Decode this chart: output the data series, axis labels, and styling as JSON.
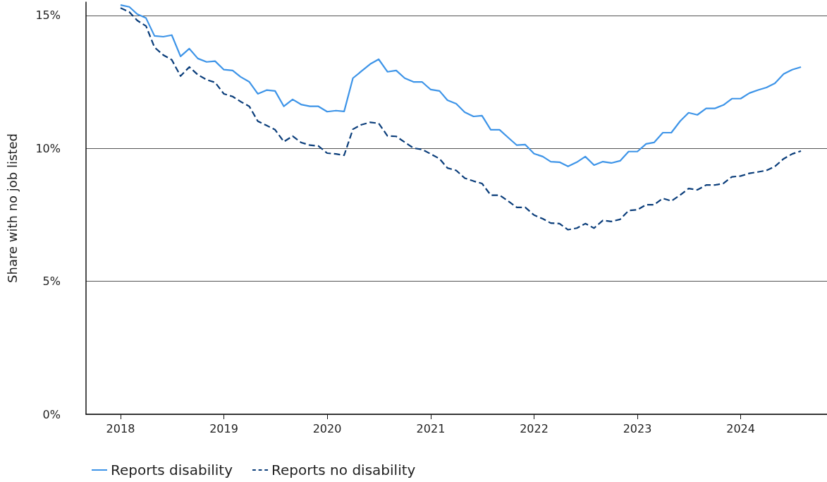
{
  "chart_data": {
    "type": "line",
    "ylabel": "Share with no job listed",
    "x": [
      "2018-01",
      "2018-02",
      "2018-03",
      "2018-04",
      "2018-05",
      "2018-06",
      "2018-07",
      "2018-08",
      "2018-09",
      "2018-10",
      "2018-11",
      "2018-12",
      "2019-01",
      "2019-02",
      "2019-03",
      "2019-04",
      "2019-05",
      "2019-06",
      "2019-07",
      "2019-08",
      "2019-09",
      "2019-10",
      "2019-11",
      "2019-12",
      "2020-01",
      "2020-02",
      "2020-03",
      "2020-04",
      "2020-05",
      "2020-06",
      "2020-07",
      "2020-08",
      "2020-09",
      "2020-10",
      "2020-11",
      "2020-12",
      "2021-01",
      "2021-02",
      "2021-03",
      "2021-04",
      "2021-05",
      "2021-06",
      "2021-07",
      "2021-08",
      "2021-09",
      "2021-10",
      "2021-11",
      "2021-12",
      "2022-01",
      "2022-02",
      "2022-03",
      "2022-04",
      "2022-05",
      "2022-06",
      "2022-07",
      "2022-08",
      "2022-09",
      "2022-10",
      "2022-11",
      "2022-12",
      "2023-01",
      "2023-02",
      "2023-03",
      "2023-04",
      "2023-05",
      "2023-06",
      "2023-07",
      "2023-08",
      "2023-09",
      "2023-10",
      "2023-11",
      "2023-12",
      "2024-01",
      "2024-02",
      "2024-03",
      "2024-04",
      "2024-05",
      "2024-06",
      "2024-07",
      "2024-08"
    ],
    "series": [
      {
        "name": "Reports disability",
        "color": "#3d94e8",
        "line_style": "solid",
        "values": [
          15.39,
          15.32,
          15.05,
          14.9,
          14.23,
          14.2,
          14.26,
          13.46,
          13.75,
          13.38,
          13.25,
          13.28,
          12.96,
          12.93,
          12.69,
          12.5,
          12.05,
          12.19,
          12.16,
          11.58,
          11.84,
          11.65,
          11.58,
          11.58,
          11.38,
          11.42,
          11.39,
          12.64,
          12.9,
          13.17,
          13.35,
          12.88,
          12.93,
          12.64,
          12.5,
          12.5,
          12.21,
          12.16,
          11.81,
          11.68,
          11.36,
          11.2,
          11.23,
          10.7,
          10.7,
          10.41,
          10.12,
          10.14,
          9.8,
          9.69,
          9.5,
          9.48,
          9.32,
          9.48,
          9.69,
          9.37,
          9.5,
          9.45,
          9.53,
          9.88,
          9.88,
          10.17,
          10.22,
          10.59,
          10.59,
          11.02,
          11.34,
          11.26,
          11.5,
          11.5,
          11.63,
          11.87,
          11.87,
          12.08,
          12.19,
          12.29,
          12.45,
          12.8,
          12.96,
          13.06
        ]
      },
      {
        "name": "Reports no disability",
        "color": "#0a3d7a",
        "line_style": "dashed",
        "values": [
          15.28,
          15.13,
          14.81,
          14.6,
          13.8,
          13.51,
          13.33,
          12.72,
          13.06,
          12.77,
          12.58,
          12.48,
          12.05,
          11.95,
          11.76,
          11.58,
          11.02,
          10.86,
          10.7,
          10.25,
          10.46,
          10.22,
          10.12,
          10.09,
          9.82,
          9.79,
          9.74,
          10.72,
          10.89,
          10.98,
          10.94,
          10.47,
          10.45,
          10.23,
          10.01,
          9.96,
          9.79,
          9.61,
          9.26,
          9.17,
          8.88,
          8.77,
          8.68,
          8.24,
          8.24,
          8.02,
          7.78,
          7.78,
          7.49,
          7.35,
          7.19,
          7.17,
          6.94,
          7.0,
          7.17,
          7.0,
          7.29,
          7.25,
          7.33,
          7.66,
          7.69,
          7.88,
          7.88,
          8.12,
          8.02,
          8.24,
          8.49,
          8.44,
          8.62,
          8.62,
          8.68,
          8.93,
          8.96,
          9.06,
          9.11,
          9.17,
          9.32,
          9.61,
          9.79,
          9.9
        ]
      }
    ],
    "xlim": [
      "2017-09",
      "2024-11"
    ],
    "xticks": [
      "2018",
      "2019",
      "2020",
      "2021",
      "2022",
      "2023",
      "2024"
    ],
    "ylim": [
      0,
      15.5
    ],
    "yticks": [
      {
        "value": 0,
        "label": "0%"
      },
      {
        "value": 5,
        "label": "5%"
      },
      {
        "value": 10,
        "label": "10%"
      },
      {
        "value": 15,
        "label": "15%"
      }
    ],
    "grid": "y",
    "legend": "bottom left",
    "marker": "none"
  }
}
